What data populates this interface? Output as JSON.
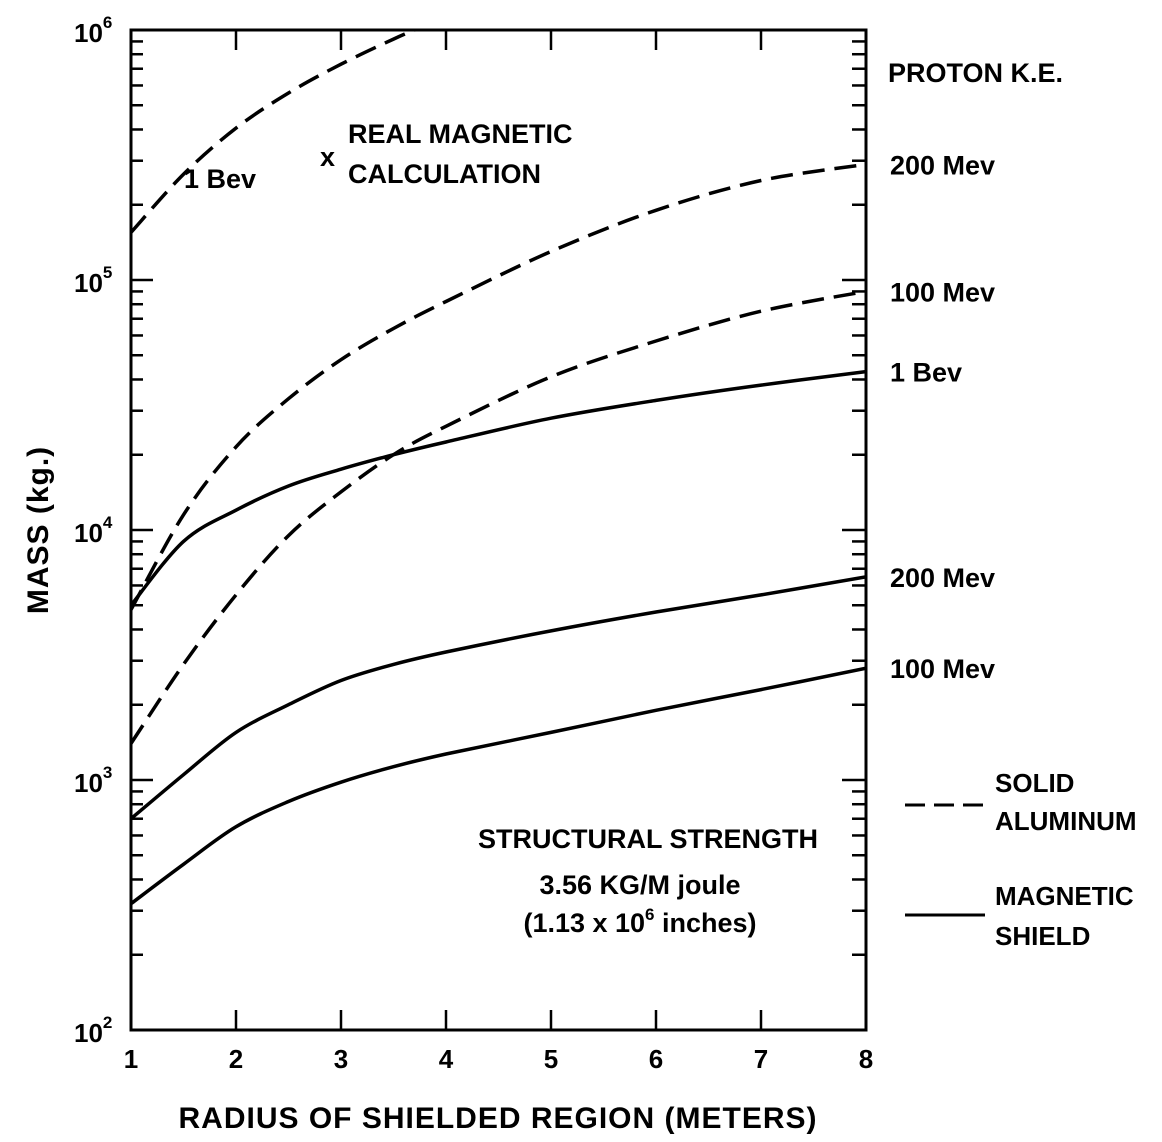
{
  "chart_data": {
    "type": "line",
    "ylabel": "MASS (kg.)",
    "xlabel": "RADIUS OF SHIELDED REGION (METERS)",
    "xlim": [
      1,
      8
    ],
    "ylim": [
      100,
      1000000
    ],
    "y_scale": "log",
    "x_ticks": [
      "1",
      "2",
      "3",
      "4",
      "5",
      "6",
      "7",
      "8"
    ],
    "y_ticks": [
      {
        "value": 100,
        "base": "10",
        "exp": "2"
      },
      {
        "value": 1000,
        "base": "10",
        "exp": "3"
      },
      {
        "value": 10000,
        "base": "10",
        "exp": "4"
      },
      {
        "value": 100000,
        "base": "10",
        "exp": "5"
      },
      {
        "value": 1000000,
        "base": "10",
        "exp": "6"
      }
    ],
    "grid": false,
    "right_header": "PROTON K.E.",
    "series": [
      {
        "name": "1 Bev",
        "style": "dashed",
        "group": "SOLID ALUMINUM",
        "x": [
          1,
          1.5,
          2,
          2.5,
          3,
          3.5,
          3.7
        ],
        "values": [
          155000,
          265000,
          405000,
          560000,
          730000,
          920000,
          1000000
        ]
      },
      {
        "name": "200 Mev",
        "style": "dashed",
        "group": "SOLID ALUMINUM",
        "x": [
          1,
          1.5,
          2,
          2.5,
          3,
          3.5,
          4,
          5,
          6,
          7,
          8
        ],
        "values": [
          4800,
          11500,
          21500,
          33500,
          48000,
          64000,
          82000,
          130000,
          190000,
          250000,
          290000
        ]
      },
      {
        "name": "100 Mev",
        "style": "dashed",
        "group": "SOLID ALUMINUM",
        "x": [
          1,
          1.5,
          2,
          2.5,
          3,
          3.5,
          4,
          5,
          6,
          7,
          8
        ],
        "values": [
          1400,
          2900,
          5500,
          9500,
          14200,
          20000,
          26000,
          41000,
          57000,
          75000,
          90000
        ]
      },
      {
        "name": "1 Bev",
        "style": "solid",
        "group": "MAGNETIC SHIELD",
        "x": [
          1,
          1.5,
          2,
          2.5,
          3,
          3.5,
          4,
          5,
          6,
          7,
          8
        ],
        "values": [
          5000,
          9000,
          12000,
          15000,
          17500,
          20000,
          22500,
          28000,
          33000,
          38000,
          43000
        ]
      },
      {
        "name": "200 Mev",
        "style": "solid",
        "group": "MAGNETIC SHIELD",
        "x": [
          1,
          1.5,
          2,
          2.5,
          3,
          3.5,
          4,
          5,
          6,
          7,
          8
        ],
        "values": [
          700,
          1050,
          1550,
          2000,
          2500,
          2900,
          3250,
          3950,
          4700,
          5500,
          6500
        ]
      },
      {
        "name": "100 Mev",
        "style": "solid",
        "group": "MAGNETIC SHIELD",
        "x": [
          1,
          1.5,
          2,
          2.5,
          3,
          3.5,
          4,
          5,
          6,
          7,
          8
        ],
        "values": [
          320,
          460,
          650,
          820,
          980,
          1130,
          1270,
          1550,
          1900,
          2300,
          2800
        ]
      }
    ],
    "annotations": {
      "marker": "x",
      "real_line1": "REAL MAGNETIC",
      "real_line2": "CALCULATION",
      "struct_line1": "STRUCTURAL STRENGTH",
      "struct_line2": "3.56 KG/M joule",
      "struct_line3_pre": "(1.13 x 10",
      "struct_line3_exp": "6",
      "struct_line3_post": " inches)"
    },
    "legend": {
      "placement": "right",
      "entries": [
        {
          "style": "dashed",
          "line1": "SOLID",
          "line2": "ALUMINUM"
        },
        {
          "style": "solid",
          "line1": "MAGNETIC",
          "line2": "SHIELD"
        }
      ]
    }
  }
}
